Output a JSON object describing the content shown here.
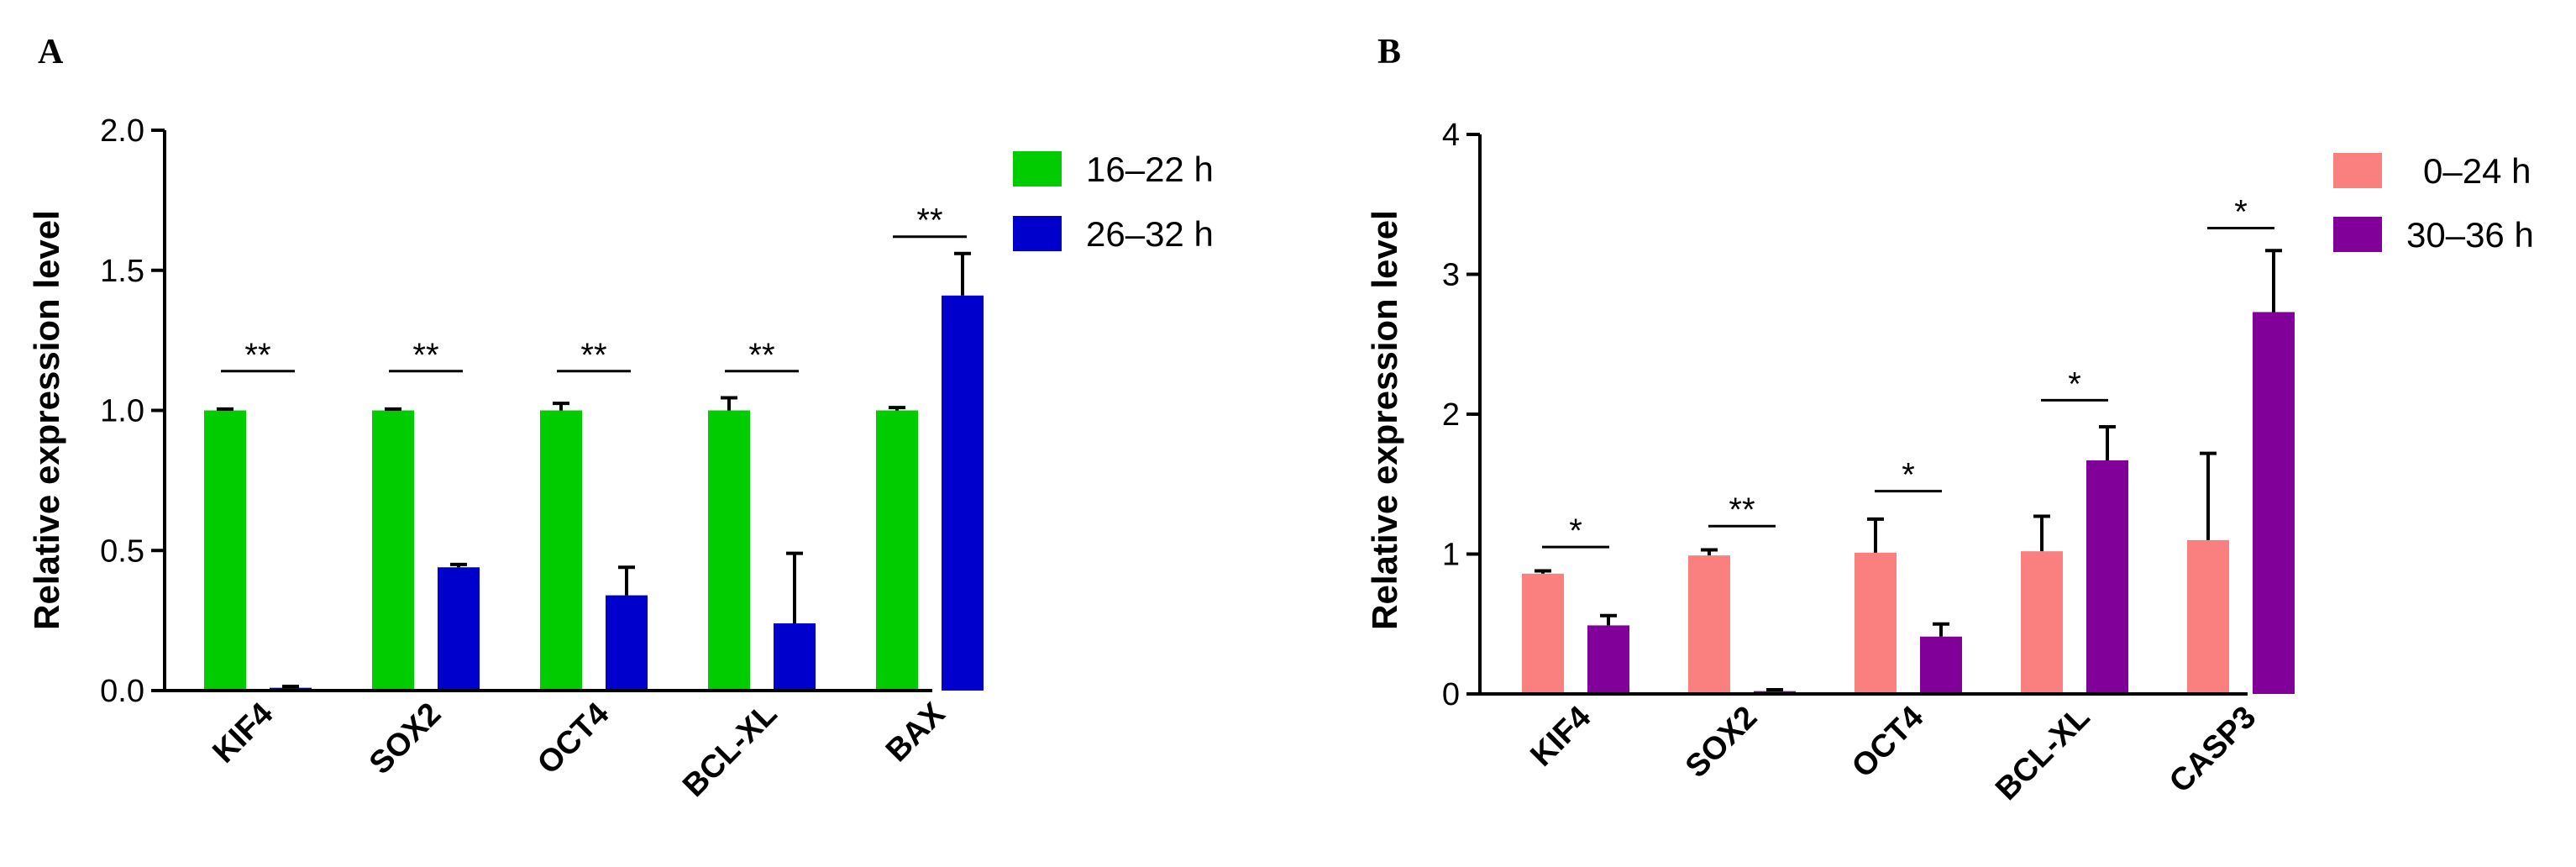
{
  "chart_data": [
    {
      "type": "bar",
      "panel": "A",
      "title": "",
      "xlabel": "",
      "ylabel": "Relative expression level",
      "ylim": [
        0,
        2.0
      ],
      "yticks": [
        "0.0",
        "0.5",
        "1.0",
        "1.5",
        "2.0"
      ],
      "ytick_values": [
        0,
        0.5,
        1.0,
        1.5,
        2.0
      ],
      "categories": [
        "KIF4",
        "SOX2",
        "OCT4",
        "BCL-XL",
        "BAX"
      ],
      "series": [
        {
          "name": "16–22 h",
          "color": "#00cc00",
          "values": [
            1.0,
            1.0,
            1.0,
            1.0,
            1.0
          ],
          "errors": [
            0.005,
            0.005,
            0.025,
            0.045,
            0.01
          ]
        },
        {
          "name": "26–32 h",
          "color": "#0000cc",
          "values": [
            0.01,
            0.44,
            0.34,
            0.24,
            1.41
          ],
          "errors": [
            0.005,
            0.01,
            0.1,
            0.25,
            0.15
          ]
        }
      ],
      "significance": [
        "**",
        "**",
        "**",
        "**",
        "**"
      ],
      "significance_y": [
        1.14,
        1.14,
        1.14,
        1.14,
        1.62
      ],
      "legend_position": "top-right"
    },
    {
      "type": "bar",
      "panel": "B",
      "title": "",
      "xlabel": "",
      "ylabel": "Relative expression level",
      "ylim": [
        0,
        4
      ],
      "yticks": [
        "0",
        "1",
        "2",
        "3",
        "4"
      ],
      "ytick_values": [
        0,
        1,
        2,
        3,
        4
      ],
      "categories": [
        "KIF4",
        "SOX2",
        "OCT4",
        "BCL-XL",
        "CASP3"
      ],
      "series": [
        {
          "name": "0–24 h",
          "color": "#fa8080",
          "values": [
            0.86,
            0.99,
            1.01,
            1.02,
            1.1
          ],
          "errors": [
            0.02,
            0.04,
            0.24,
            0.25,
            0.62
          ]
        },
        {
          "name": "30–36 h",
          "color": "#800099",
          "values": [
            0.49,
            0.02,
            0.41,
            1.67,
            2.73
          ],
          "errors": [
            0.07,
            0.01,
            0.09,
            0.24,
            0.44
          ]
        }
      ],
      "significance": [
        "*",
        "**",
        "*",
        "*",
        "*"
      ],
      "significance_y": [
        1.05,
        1.2,
        1.45,
        2.1,
        3.33
      ],
      "legend_position": "top-right"
    }
  ]
}
